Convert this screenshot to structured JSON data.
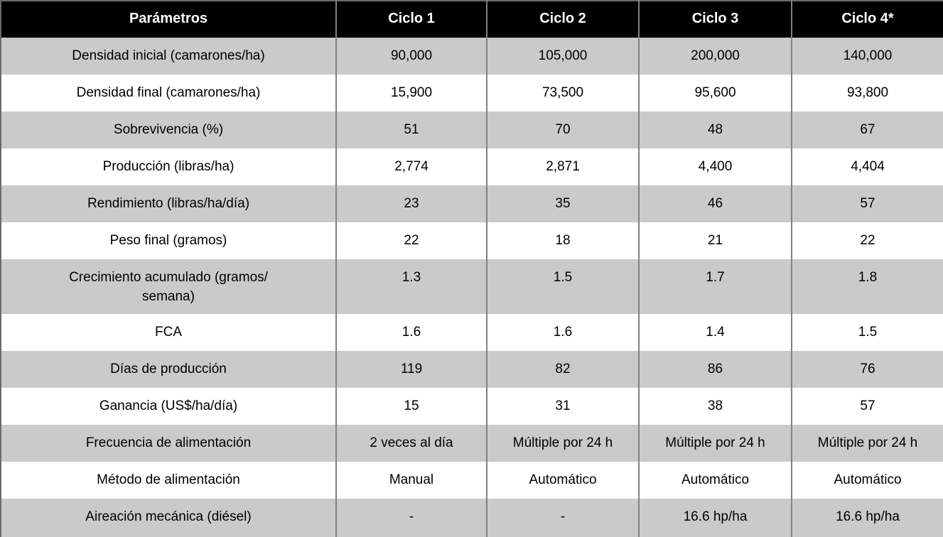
{
  "colors": {
    "header_bg": "#000000",
    "header_text": "#ffffff",
    "shaded_row_bg": "#c8cbca",
    "plain_row_bg": "#ffffff",
    "body_text": "#000000",
    "grid_line": "#818181",
    "outer_border": "#6a6a6a"
  },
  "chart_data": {
    "type": "table",
    "title": "",
    "columns": [
      "Parámetros",
      "Ciclo 1",
      "Ciclo 2",
      "Ciclo 3",
      "Ciclo 4*"
    ],
    "rows": [
      {
        "label": "Densidad inicial (camarones/ha)",
        "values": [
          "90,000",
          "105,000",
          "200,000",
          "140,000"
        ]
      },
      {
        "label": "Densidad final (camarones/ha)",
        "values": [
          "15,900",
          "73,500",
          "95,600",
          "93,800"
        ]
      },
      {
        "label": "Sobrevivencia (%)",
        "values": [
          "51",
          "70",
          "48",
          "67"
        ]
      },
      {
        "label": "Producción (libras/ha)",
        "values": [
          "2,774",
          "2,871",
          "4,400",
          "4,404"
        ]
      },
      {
        "label": "Rendimiento (libras/ha/día)",
        "values": [
          "23",
          "35",
          "46",
          "57"
        ]
      },
      {
        "label": "Peso final (gramos)",
        "values": [
          "22",
          "18",
          "21",
          "22"
        ]
      },
      {
        "label": "Crecimiento acumulado (gramos/\nsemana)",
        "values": [
          "1.3",
          "1.5",
          "1.7",
          "1.8"
        ]
      },
      {
        "label": "FCA",
        "values": [
          "1.6",
          "1.6",
          "1.4",
          "1.5"
        ]
      },
      {
        "label": "Días de producción",
        "values": [
          "119",
          "82",
          "86",
          "76"
        ]
      },
      {
        "label": "Ganancia (US$/ha/día)",
        "values": [
          "15",
          "31",
          "38",
          "57"
        ]
      },
      {
        "label": "Frecuencia de alimentación",
        "values": [
          "2 veces al día",
          "Múltiple por 24 h",
          "Múltiple por 24 h",
          "Múltiple por 24 h"
        ]
      },
      {
        "label": "Método de alimentación",
        "values": [
          "Manual",
          "Automático",
          "Automático",
          "Automático"
        ]
      },
      {
        "label": "Aireación mecánica (diésel)",
        "values": [
          "-",
          "-",
          "16.6 hp/ha",
          "16.6 hp/ha"
        ]
      }
    ],
    "layout": {
      "striped": true,
      "first_body_row_shaded": true,
      "grid": "vertical-lines-only",
      "text_align": "center"
    }
  }
}
